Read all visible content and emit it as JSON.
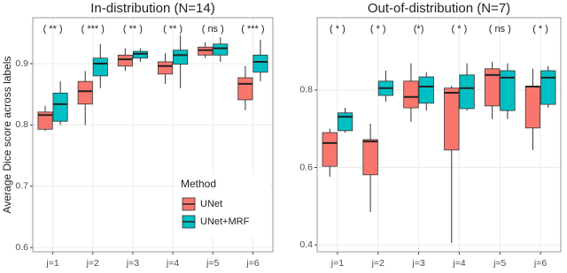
{
  "chart_data": [
    {
      "type": "box",
      "title": "In-distribution (N=14)",
      "ylabel": "Average Dice score across labels",
      "legend": {
        "title": "Method",
        "corner": "bottom-right"
      },
      "categories": [
        "j=1",
        "j=2",
        "j=3",
        "j=4",
        "j=5",
        "j=6"
      ],
      "annotations": [
        "( ** )",
        "( *** )",
        "( ** )",
        "( ** )",
        "( ns )",
        "( *** )"
      ],
      "ylim": [
        0.593,
        0.975
      ],
      "yticks": [
        0.6,
        0.7,
        0.8,
        0.9
      ],
      "grid": true,
      "series": [
        {
          "name": "UNet",
          "color": "#F8766D",
          "values": [
            {
              "min": 0.79,
              "q1": 0.793,
              "median": 0.816,
              "q3": 0.821,
              "max": 0.831
            },
            {
              "min": 0.8,
              "q1": 0.834,
              "median": 0.855,
              "q3": 0.871,
              "max": 0.888
            },
            {
              "min": 0.888,
              "q1": 0.896,
              "median": 0.907,
              "q3": 0.914,
              "max": 0.925
            },
            {
              "min": 0.867,
              "q1": 0.883,
              "median": 0.896,
              "q3": 0.903,
              "max": 0.917
            },
            {
              "min": 0.909,
              "q1": 0.914,
              "median": 0.922,
              "q3": 0.927,
              "max": 0.935
            },
            {
              "min": 0.824,
              "q1": 0.841,
              "median": 0.867,
              "q3": 0.877,
              "max": 0.896
            }
          ]
        },
        {
          "name": "UNet+MRF",
          "color": "#00BFC4",
          "values": [
            {
              "min": 0.8,
              "q1": 0.806,
              "median": 0.834,
              "q3": 0.852,
              "max": 0.871
            },
            {
              "min": 0.86,
              "q1": 0.88,
              "median": 0.9,
              "q3": 0.909,
              "max": 0.932
            },
            {
              "min": 0.903,
              "q1": 0.909,
              "median": 0.916,
              "q3": 0.92,
              "max": 0.925
            },
            {
              "min": 0.86,
              "q1": 0.899,
              "median": 0.914,
              "q3": 0.922,
              "max": 0.946
            },
            {
              "min": 0.903,
              "q1": 0.914,
              "median": 0.925,
              "q3": 0.932,
              "max": 0.943
            },
            {
              "min": 0.871,
              "q1": 0.886,
              "median": 0.903,
              "q3": 0.914,
              "max": 0.939
            }
          ]
        }
      ]
    },
    {
      "type": "box",
      "title": "Out-of-distribution (N=7)",
      "categories": [
        "j=1",
        "j=2",
        "j=3",
        "j=4",
        "j=5",
        "j=6"
      ],
      "annotations": [
        "( * )",
        "( * )",
        "(*)",
        "( * )",
        "( ns )",
        "( * )"
      ],
      "ylim": [
        0.382,
        0.987
      ],
      "yticks": [
        0.4,
        0.6,
        0.8
      ],
      "grid": true,
      "series": [
        {
          "color": "#F8766D",
          "values": [
            {
              "min": 0.576,
              "q1": 0.603,
              "median": 0.663,
              "q3": 0.69,
              "max": 0.7
            },
            {
              "min": 0.485,
              "q1": 0.581,
              "median": 0.667,
              "q3": 0.672,
              "max": 0.713
            },
            {
              "min": 0.718,
              "q1": 0.754,
              "median": 0.782,
              "q3": 0.823,
              "max": 0.869
            },
            {
              "min": 0.405,
              "q1": 0.645,
              "median": 0.793,
              "q3": 0.805,
              "max": 0.811
            },
            {
              "min": 0.725,
              "q1": 0.759,
              "median": 0.839,
              "q3": 0.855,
              "max": 0.873
            },
            {
              "min": 0.645,
              "q1": 0.702,
              "median": 0.809,
              "q3": 0.809,
              "max": 0.855
            }
          ]
        },
        {
          "color": "#00BFC4",
          "values": [
            {
              "min": 0.69,
              "q1": 0.695,
              "median": 0.731,
              "q3": 0.741,
              "max": 0.754
            },
            {
              "min": 0.77,
              "q1": 0.786,
              "median": 0.805,
              "q3": 0.823,
              "max": 0.85
            },
            {
              "min": 0.747,
              "q1": 0.766,
              "median": 0.809,
              "q3": 0.834,
              "max": 0.846
            },
            {
              "min": 0.747,
              "q1": 0.752,
              "median": 0.805,
              "q3": 0.839,
              "max": 0.869
            },
            {
              "min": 0.725,
              "q1": 0.747,
              "median": 0.832,
              "q3": 0.85,
              "max": 0.869
            },
            {
              "min": 0.754,
              "q1": 0.763,
              "median": 0.832,
              "q3": 0.85,
              "max": 0.862
            }
          ]
        }
      ]
    }
  ]
}
